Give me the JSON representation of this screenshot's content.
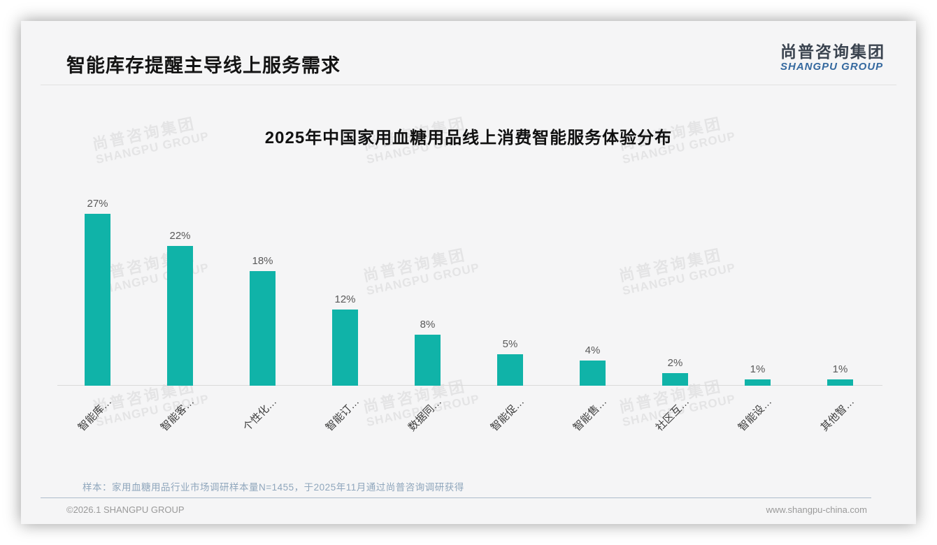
{
  "header": {
    "title": "智能库存提醒主导线上服务需求",
    "logo": {
      "cn": "尚普咨询集团",
      "en": "SHANGPU GROUP"
    }
  },
  "chart_data": {
    "type": "bar",
    "title": "2025年中国家用血糖用品线上消费智能服务体验分布",
    "categories": [
      "智能库…",
      "智能客…",
      "个性化…",
      "智能订…",
      "数据同…",
      "智能促…",
      "智能售…",
      "社区互…",
      "智能设…",
      "其他智…"
    ],
    "values": [
      27,
      22,
      18,
      12,
      8,
      5,
      4,
      2,
      1,
      1
    ],
    "value_labels": [
      "27%",
      "22%",
      "18%",
      "12%",
      "8%",
      "5%",
      "4%",
      "2%",
      "1%",
      "1%"
    ],
    "unit": "%",
    "ylim": [
      0,
      28
    ],
    "grid": false,
    "legend": false,
    "bar_color": "#10B3A8",
    "xlabel": "",
    "ylabel": ""
  },
  "watermark": {
    "cn": "尚普咨询集团",
    "en": "SHANGPU GROUP"
  },
  "footnote": "样本：家用血糖用品行业市场调研样本量N=1455，于2025年11月通过尚普咨询调研获得",
  "footer": {
    "left": "©2026.1 SHANGPU GROUP",
    "right": "www.shangpu-china.com"
  },
  "colors": {
    "bar": "#10B3A8",
    "logo_en": "#35699F",
    "footnote": "#8FA6BC"
  }
}
